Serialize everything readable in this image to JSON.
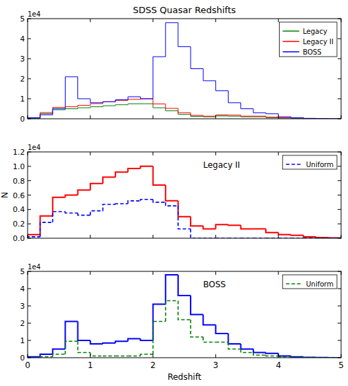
{
  "chart_data": [
    {
      "type": "histogram",
      "title": "SDSS Quasar Redshifts",
      "offset_text": "1e4",
      "bins": [
        0,
        0.2,
        0.4,
        0.6,
        0.8,
        1.0,
        1.2,
        1.4,
        1.6,
        1.8,
        2.0,
        2.2,
        2.4,
        2.6,
        2.8,
        3.0,
        3.2,
        3.4,
        3.6,
        3.8,
        4.0,
        4.2,
        4.4,
        4.6,
        4.8,
        5.0
      ],
      "series": [
        {
          "name": "Legacy",
          "color": "#008000",
          "line_style": "solid",
          "values": [
            0.02,
            0.25,
            0.45,
            0.5,
            0.55,
            0.6,
            0.65,
            0.7,
            0.75,
            0.75,
            0.55,
            0.4,
            0.22,
            0.12,
            0.1,
            0.14,
            0.13,
            0.1,
            0.1,
            0.06,
            0.04,
            0.03,
            0.01,
            0.01,
            0.0
          ]
        },
        {
          "name": "Legacy II",
          "color": "#ff0000",
          "line_style": "solid",
          "values": [
            0.05,
            0.31,
            0.57,
            0.6,
            0.67,
            0.76,
            0.85,
            0.92,
            0.97,
            1.0,
            0.74,
            0.52,
            0.3,
            0.17,
            0.13,
            0.19,
            0.18,
            0.13,
            0.13,
            0.08,
            0.05,
            0.04,
            0.02,
            0.01,
            0.005
          ]
        },
        {
          "name": "BOSS",
          "color": "#0000ff",
          "line_style": "solid",
          "values": [
            0.05,
            0.2,
            0.5,
            2.1,
            1.0,
            0.8,
            0.85,
            0.95,
            1.1,
            1.0,
            3.1,
            4.8,
            3.6,
            2.5,
            1.9,
            1.4,
            0.8,
            0.5,
            0.3,
            0.25,
            0.1,
            0.05,
            0.02,
            0.01,
            0.0
          ]
        }
      ],
      "xlim": [
        0,
        5
      ],
      "xticks": [
        0,
        1,
        2,
        3,
        4,
        5
      ],
      "ylim": [
        0,
        5
      ],
      "yticks": [
        0,
        1,
        2,
        3,
        4,
        5
      ],
      "legend": "upper right",
      "tick_labels": "y"
    },
    {
      "type": "histogram",
      "offset_text": "1e4",
      "y_label": "N",
      "annotation": "Legacy II",
      "bins": [
        0,
        0.2,
        0.4,
        0.6,
        0.8,
        1.0,
        1.2,
        1.4,
        1.6,
        1.8,
        2.0,
        2.2,
        2.4,
        2.6,
        2.8,
        3.0,
        3.2,
        3.4,
        3.6,
        3.8,
        4.0,
        4.2,
        4.4,
        4.6,
        4.8,
        5.0
      ],
      "series": [
        {
          "color": "#ff0000",
          "line_style": "solid",
          "values": [
            0.05,
            0.31,
            0.57,
            0.6,
            0.67,
            0.76,
            0.85,
            0.92,
            0.97,
            1.0,
            0.74,
            0.52,
            0.3,
            0.17,
            0.13,
            0.19,
            0.18,
            0.13,
            0.13,
            0.08,
            0.05,
            0.04,
            0.02,
            0.01,
            0.005
          ]
        },
        {
          "name": "Uniform",
          "color": "#0000ff",
          "line_style": "dashed",
          "values": [
            0.02,
            0.22,
            0.37,
            0.35,
            0.32,
            0.38,
            0.47,
            0.48,
            0.52,
            0.54,
            0.5,
            0.45,
            0.13,
            0,
            0,
            0,
            0,
            0,
            0,
            0,
            0,
            0,
            0,
            0,
            0
          ]
        }
      ],
      "xlim": [
        0,
        5
      ],
      "xticks": [
        0,
        1,
        2,
        3,
        4,
        5
      ],
      "ylim": [
        0,
        1.2
      ],
      "yticks": [
        {
          "value": 0,
          "label": "0.0"
        },
        {
          "value": 0.2,
          "label": "0.2"
        },
        {
          "value": 0.4,
          "label": "0.4"
        },
        {
          "value": 0.6,
          "label": "0.6"
        },
        {
          "value": 0.8,
          "label": "0.8"
        },
        {
          "value": 1.0,
          "label": "1.0"
        },
        {
          "value": 1.2,
          "label": "1.2"
        }
      ],
      "legend": "upper right",
      "tick_labels": "y"
    },
    {
      "type": "histogram",
      "offset_text": "1e4",
      "x_label": "Redshift",
      "annotation": "BOSS",
      "bins": [
        0,
        0.2,
        0.4,
        0.6,
        0.8,
        1.0,
        1.2,
        1.4,
        1.6,
        1.8,
        2.0,
        2.2,
        2.4,
        2.6,
        2.8,
        3.0,
        3.2,
        3.4,
        3.6,
        3.8,
        4.0,
        4.2,
        4.4,
        4.6,
        4.8,
        5.0
      ],
      "series": [
        {
          "color": "#0000ff",
          "line_style": "solid",
          "values": [
            0.05,
            0.2,
            0.5,
            2.1,
            1.0,
            0.8,
            0.85,
            0.95,
            1.1,
            1.0,
            3.1,
            4.8,
            3.6,
            2.5,
            1.9,
            1.4,
            0.8,
            0.5,
            0.3,
            0.25,
            0.1,
            0.05,
            0.02,
            0.01,
            0.0
          ]
        },
        {
          "name": "Uniform",
          "color": "#008000",
          "line_style": "dashed",
          "values": [
            0,
            0.05,
            0.2,
            0.95,
            0.3,
            0.1,
            0.1,
            0.1,
            0.1,
            0.2,
            2.1,
            3.3,
            2.2,
            1.2,
            0.9,
            0.9,
            0.5,
            0.3,
            0.15,
            0.1,
            0.05,
            0.02,
            0.01,
            0,
            0
          ]
        }
      ],
      "xlim": [
        0,
        5
      ],
      "xticks": [
        0,
        1,
        2,
        3,
        4,
        5
      ],
      "ylim": [
        0,
        5
      ],
      "yticks": [
        0,
        1,
        2,
        3,
        4,
        5
      ],
      "legend": "upper right",
      "tick_labels": true
    }
  ]
}
